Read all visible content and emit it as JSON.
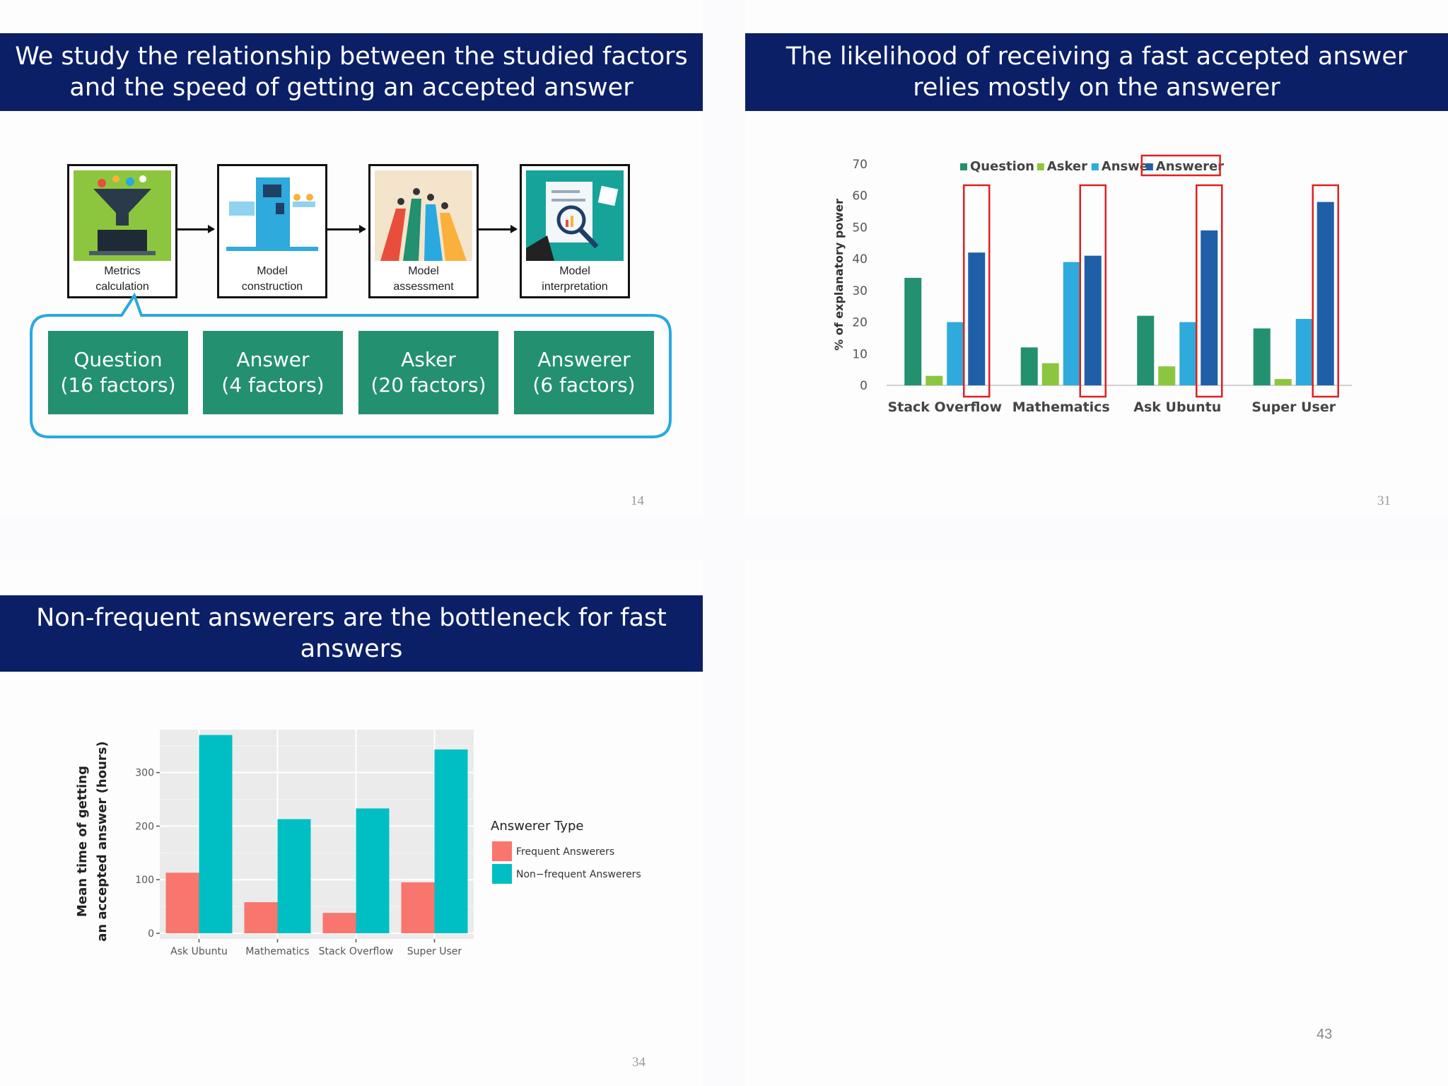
{
  "slide1": {
    "title": "We study the relationship between the studied factors and the speed of getting an accepted answer",
    "stages": [
      {
        "label": "Metrics\ncalculation",
        "icon": "funnel-laptop-icon"
      },
      {
        "label": "Model\nconstruction",
        "icon": "machine-icon"
      },
      {
        "label": "Model\nassessment",
        "icon": "bar-figures-icon"
      },
      {
        "label": "Model\ninterpretation",
        "icon": "magnifier-report-icon"
      }
    ],
    "factors": [
      "Question\n(16 factors)",
      "Answer\n(4 factors)",
      "Asker\n(20 factors)",
      "Answerer\n(6 factors)"
    ],
    "page": "14",
    "colors": {
      "factor_box": "#23906f",
      "callout_border": "#29a9e0"
    }
  },
  "slide2": {
    "title": "The likelihood of receiving a fast accepted answer relies mostly on the answerer",
    "page": "31"
  },
  "slide3": {
    "title": "Non-frequent answerers are the bottleneck for fast answers",
    "page": "34"
  },
  "slide4": {
    "page": "43"
  },
  "chart_data": [
    {
      "type": "bar",
      "ylabel": "% of explanatory power",
      "xlabel": "",
      "ylim": [
        0,
        70
      ],
      "yticks": [
        0,
        10,
        20,
        30,
        40,
        50,
        60,
        70
      ],
      "categories": [
        "Stack Overflow",
        "Mathematics",
        "Ask Ubuntu",
        "Super User"
      ],
      "series": [
        {
          "name": "Question",
          "values": [
            34,
            12,
            22,
            18
          ],
          "color": "#23906f"
        },
        {
          "name": "Asker",
          "values": [
            3,
            7,
            6,
            2
          ],
          "color": "#8cc63f"
        },
        {
          "name": "Answer",
          "legend_label": "Answe",
          "values": [
            20,
            39,
            20,
            21
          ],
          "color": "#2eaadc"
        },
        {
          "name": "Answerer",
          "values": [
            42,
            41,
            49,
            58
          ],
          "color": "#1f5fa8"
        }
      ],
      "legend": "top-center",
      "grid": false,
      "highlight": {
        "series": "Answerer",
        "color": "#e02020"
      }
    },
    {
      "type": "bar",
      "ylabel": "Mean time of getting\nan accepted answer (hours)",
      "xlabel": "",
      "ylim": [
        0,
        380
      ],
      "yticks": [
        0,
        100,
        200,
        300
      ],
      "categories": [
        "Ask Ubuntu",
        "Mathematics",
        "Stack Overflow",
        "Super User"
      ],
      "legend_title": "Answerer Type",
      "series": [
        {
          "name": "Frequent Answerers",
          "values": [
            113,
            58,
            38,
            95
          ],
          "color": "#f8766d"
        },
        {
          "name": "Non−frequent Answerers",
          "values": [
            370,
            213,
            233,
            343
          ],
          "color": "#00bfc4"
        }
      ],
      "legend": "right",
      "grid": true
    }
  ]
}
